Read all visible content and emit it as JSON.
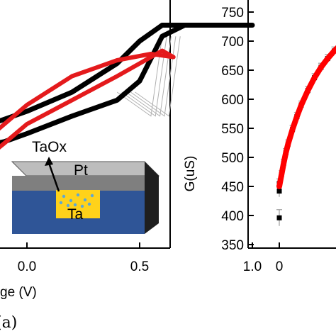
{
  "chart_data": [
    {
      "type": "line",
      "panel_label": "(a)",
      "xlabel": "ge (V)",
      "xticks": [
        "0.0",
        "0.5",
        "1.0"
      ],
      "xlim": [
        -0.5,
        1.05
      ],
      "ylim": [
        -1.0,
        1.0
      ],
      "series": [
        {
          "color": "#000000",
          "x": [
            -0.5,
            -0.3,
            -0.1,
            0.0,
            0.2,
            0.4,
            0.5,
            0.6,
            0.7,
            1.0,
            0.6,
            0.5,
            0.4,
            0.2,
            0.0,
            -0.2,
            -0.4,
            -0.5
          ],
          "y": [
            -0.22,
            -0.17,
            -0.11,
            -0.06,
            0.05,
            0.15,
            0.27,
            0.55,
            0.62,
            0.62,
            0.62,
            0.52,
            0.38,
            0.2,
            0.08,
            -0.02,
            -0.1,
            -0.15
          ]
        },
        {
          "color": "#e41a1c",
          "x": [
            -0.5,
            -0.3,
            -0.1,
            0.0,
            0.2,
            0.4,
            0.5,
            0.6,
            0.65,
            0.55,
            0.4,
            0.2,
            0.0,
            -0.2,
            -0.4,
            -0.5
          ],
          "y": [
            -0.65,
            -0.35,
            -0.12,
            0.0,
            0.15,
            0.3,
            0.38,
            0.46,
            0.42,
            0.44,
            0.4,
            0.3,
            0.12,
            -0.12,
            -0.4,
            -0.6
          ]
        }
      ],
      "inset": {
        "arrow_label": "TaOx",
        "top_layer": "Pt",
        "bottom_layer": "Ta",
        "colors": {
          "pt": "#7f7f7f",
          "ta": "#2f5597",
          "filament": "#ffd21a",
          "dots": "#5fa8d3"
        }
      }
    },
    {
      "type": "scatter",
      "ylabel": "G(uS)",
      "xticks": [
        "0"
      ],
      "yticks": [
        "350",
        "400",
        "450",
        "500",
        "550",
        "600",
        "650",
        "700",
        "750"
      ],
      "ylim": [
        350,
        750
      ],
      "xlim": [
        -15,
        40
      ],
      "series": [
        {
          "color": "#000000",
          "x": [
            0,
            0,
            0,
            1,
            2,
            3,
            4,
            6,
            8,
            10,
            13,
            16,
            19,
            22,
            25,
            28,
            31,
            34,
            37
          ],
          "y": [
            396,
            442,
            455,
            470,
            490,
            508,
            523,
            548,
            570,
            590,
            615,
            637,
            655,
            670,
            683,
            694,
            703,
            710,
            717
          ],
          "yerr": [
            14,
            10,
            8,
            7,
            7,
            7,
            7,
            7,
            7,
            7,
            7,
            7,
            7,
            7,
            7,
            7,
            7,
            7,
            7
          ]
        },
        {
          "color": "#ff0000",
          "fit_x": [
            0,
            1,
            2,
            3,
            4,
            6,
            8,
            10,
            13,
            16,
            19,
            22,
            25,
            28,
            31,
            34,
            37
          ],
          "fit_y": [
            450,
            470,
            490,
            508,
            523,
            548,
            570,
            590,
            615,
            637,
            655,
            670,
            683,
            694,
            703,
            710,
            717
          ]
        }
      ]
    }
  ]
}
